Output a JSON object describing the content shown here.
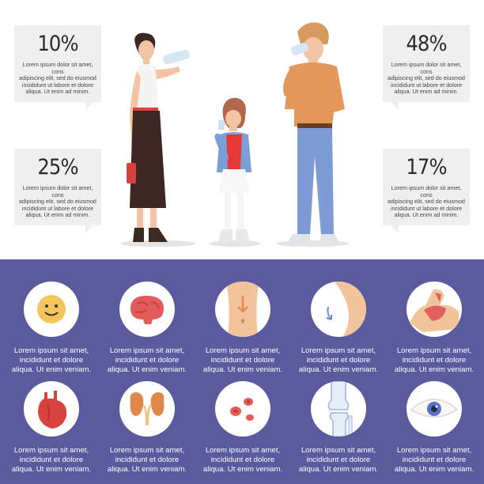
{
  "stats": [
    {
      "value": "10%",
      "text": [
        "Lorem ipsum dolor sit amet, cons",
        "adipiscing elit, sed do eiusmod",
        "incididunt ut labore et dolore",
        "aliqua. Ut enim ad minim."
      ]
    },
    {
      "value": "48%",
      "text": [
        "Lorem ipsum dolor sit amet, cons",
        "adipiscing elit, sed do eiusmod",
        "incididunt ut labore et dolore",
        "aliqua. Ut enim ad minim."
      ]
    },
    {
      "value": "25%",
      "text": [
        "Lorem ipsum dolor sit amet, cons",
        "adipiscing elit, sed do eiusmod",
        "incididunt ut labore et dolore",
        "aliqua. Ut enim ad minim."
      ]
    },
    {
      "value": "17%",
      "text": [
        "Lorem ipsum dolor sit amet, cons",
        "adipiscing elit, sed do eiusmod",
        "incididunt ut labore et dolore",
        "aliqua. Ut enim ad minim."
      ]
    }
  ],
  "organs": [
    {
      "icon": "smiley-face-icon",
      "caption": [
        "Lorem ipsum sit amet,",
        "incididunt et dolore",
        "aliqua. Ut enim veniam."
      ]
    },
    {
      "icon": "brain-icon",
      "caption": [
        "Lorem ipsum sit amet,",
        "incididunt et dolore",
        "aliqua. Ut enim veniam."
      ]
    },
    {
      "icon": "stomach-icon",
      "caption": [
        "Lorem ipsum sit amet,",
        "incididunt et dolore",
        "aliqua. Ut enim veniam."
      ]
    },
    {
      "icon": "skin-icon",
      "caption": [
        "Lorem ipsum sit amet,",
        "incididunt et dolore",
        "aliqua. Ut enim veniam."
      ]
    },
    {
      "icon": "muscle-arm-icon",
      "caption": [
        "Lorem ipsum sit amet,",
        "incididunt et dolore",
        "aliqua. Ut enim veniam."
      ]
    },
    {
      "icon": "heart-icon",
      "caption": [
        "Lorem ipsum sit amet,",
        "incididunt et dolore",
        "aliqua. Ut enim veniam."
      ]
    },
    {
      "icon": "kidneys-icon",
      "caption": [
        "Lorem ipsum sit amet,",
        "incididunt et dolore",
        "aliqua. Ut enim veniam."
      ]
    },
    {
      "icon": "blood-cells-icon",
      "caption": [
        "Lorem ipsum sit amet,",
        "incididunt et dolore",
        "aliqua. Ut enim veniam."
      ]
    },
    {
      "icon": "knee-joint-icon",
      "caption": [
        "Lorem ipsum sit amet,",
        "incididunt et dolore",
        "aliqua. Ut enim veniam."
      ]
    },
    {
      "icon": "eye-icon",
      "caption": [
        "Lorem ipsum sit amet,",
        "incididunt et dolore",
        "aliqua. Ut enim veniam."
      ]
    }
  ],
  "colors": {
    "panel": "#5a5a9e",
    "bubble": "#efefef",
    "icon_circle": "#ffffff"
  }
}
